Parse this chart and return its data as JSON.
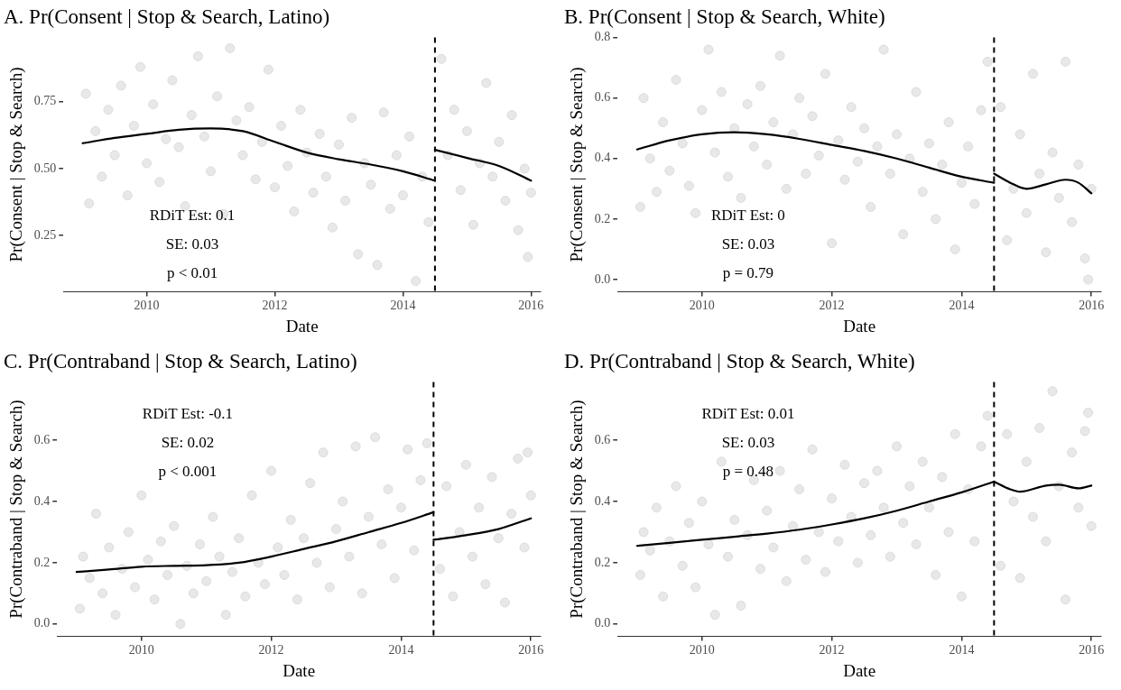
{
  "chart_data": [
    {
      "type": "scatter",
      "title": "A. Pr(Consent | Stop & Search, Latino)",
      "xlabel": "Date",
      "ylabel": "Pr(Consent | Stop & Search)",
      "xlim": [
        2008.7,
        2016.15
      ],
      "xticks": [
        2010,
        2012,
        2014,
        2016
      ],
      "ylim": [
        0.04,
        0.99
      ],
      "yticks": [
        {
          "value": 0.25,
          "label": "0.25"
        },
        {
          "value": 0.5,
          "label": "0.50"
        },
        {
          "value": 0.75,
          "label": "0.75"
        }
      ],
      "ref_lines": [
        {
          "axis": "x",
          "value": 2014.5,
          "line_style": "dashed",
          "color": "#000000"
        }
      ],
      "annotations": [
        "RDiT Est: 0.1",
        "SE: 0.03",
        "p < 0.01"
      ],
      "series": [
        {
          "type": "scatter",
          "marker": "circle",
          "color": "#d9d9d9",
          "x": [
            2009.05,
            2009.1,
            2009.2,
            2009.3,
            2009.4,
            2009.5,
            2009.6,
            2009.7,
            2009.8,
            2009.9,
            2010.0,
            2010.1,
            2010.2,
            2010.3,
            2010.4,
            2010.5,
            2010.6,
            2010.7,
            2010.8,
            2010.9,
            2011.0,
            2011.1,
            2011.2,
            2011.3,
            2011.4,
            2011.5,
            2011.6,
            2011.7,
            2011.8,
            2011.9,
            2012.0,
            2012.1,
            2012.2,
            2012.3,
            2012.4,
            2012.5,
            2012.6,
            2012.7,
            2012.8,
            2012.9,
            2013.0,
            2013.1,
            2013.2,
            2013.3,
            2013.4,
            2013.5,
            2013.6,
            2013.7,
            2013.8,
            2013.9,
            2014.0,
            2014.1,
            2014.2,
            2014.3,
            2014.4,
            2014.6,
            2014.7,
            2014.8,
            2014.9,
            2015.0,
            2015.1,
            2015.2,
            2015.3,
            2015.4,
            2015.5,
            2015.6,
            2015.7,
            2015.8,
            2015.9,
            2016.0,
            2015.95
          ],
          "values": [
            0.78,
            0.37,
            0.64,
            0.47,
            0.72,
            0.55,
            0.81,
            0.4,
            0.66,
            0.88,
            0.52,
            0.74,
            0.45,
            0.61,
            0.83,
            0.58,
            0.36,
            0.7,
            0.92,
            0.62,
            0.49,
            0.77,
            0.33,
            0.95,
            0.68,
            0.55,
            0.73,
            0.46,
            0.6,
            0.87,
            0.43,
            0.66,
            0.51,
            0.34,
            0.72,
            0.56,
            0.41,
            0.63,
            0.47,
            0.28,
            0.59,
            0.38,
            0.69,
            0.18,
            0.52,
            0.44,
            0.14,
            0.71,
            0.35,
            0.55,
            0.4,
            0.62,
            0.08,
            0.47,
            0.3,
            0.91,
            0.55,
            0.72,
            0.42,
            0.64,
            0.29,
            0.52,
            0.82,
            0.47,
            0.6,
            0.38,
            0.7,
            0.27,
            0.5,
            0.41,
            0.17
          ]
        },
        {
          "type": "line",
          "color": "#000000",
          "x": [
            2009.0,
            2009.5,
            2010.0,
            2010.5,
            2011.0,
            2011.5,
            2012.0,
            2012.5,
            2013.0,
            2013.5,
            2014.0,
            2014.5
          ],
          "values": [
            0.595,
            0.615,
            0.63,
            0.645,
            0.65,
            0.64,
            0.6,
            0.56,
            0.535,
            0.515,
            0.49,
            0.455
          ]
        },
        {
          "type": "line",
          "color": "#000000",
          "x": [
            2014.5,
            2015.0,
            2015.5,
            2016.0
          ],
          "values": [
            0.57,
            0.54,
            0.51,
            0.455
          ]
        }
      ]
    },
    {
      "type": "scatter",
      "title": "B. Pr(Consent | Stop & Search, White)",
      "xlabel": "Date",
      "ylabel": "Pr(Consent | Stop & Search)",
      "xlim": [
        2008.7,
        2016.15
      ],
      "xticks": [
        2010,
        2012,
        2014,
        2016
      ],
      "ylim": [
        -0.04,
        0.8
      ],
      "yticks": [
        {
          "value": 0,
          "label": "0.0"
        },
        {
          "value": 0.2,
          "label": "0.2"
        },
        {
          "value": 0.4,
          "label": "0.4"
        },
        {
          "value": 0.6,
          "label": "0.6"
        },
        {
          "value": 0.8,
          "label": "0.8"
        }
      ],
      "ref_lines": [
        {
          "axis": "x",
          "value": 2014.5,
          "line_style": "dashed",
          "color": "#000000"
        }
      ],
      "annotations": [
        "RDiT Est: 0",
        "SE: 0.03",
        "p = 0.79"
      ],
      "series": [
        {
          "type": "scatter",
          "marker": "circle",
          "color": "#d9d9d9",
          "x": [
            2009.05,
            2009.1,
            2009.2,
            2009.3,
            2009.4,
            2009.5,
            2009.6,
            2009.7,
            2009.8,
            2009.9,
            2010.0,
            2010.1,
            2010.2,
            2010.3,
            2010.4,
            2010.5,
            2010.6,
            2010.7,
            2010.8,
            2010.9,
            2011.0,
            2011.1,
            2011.2,
            2011.3,
            2011.4,
            2011.5,
            2011.6,
            2011.7,
            2011.8,
            2011.9,
            2012.0,
            2012.1,
            2012.2,
            2012.3,
            2012.4,
            2012.5,
            2012.6,
            2012.7,
            2012.8,
            2012.9,
            2013.0,
            2013.1,
            2013.2,
            2013.3,
            2013.4,
            2013.5,
            2013.6,
            2013.7,
            2013.8,
            2013.9,
            2014.0,
            2014.1,
            2014.2,
            2014.3,
            2014.4,
            2014.6,
            2014.7,
            2014.8,
            2014.9,
            2015.0,
            2015.1,
            2015.2,
            2015.3,
            2015.4,
            2015.5,
            2015.6,
            2015.7,
            2015.8,
            2015.9,
            2016.0,
            2015.95
          ],
          "values": [
            0.24,
            0.6,
            0.4,
            0.29,
            0.52,
            0.36,
            0.66,
            0.45,
            0.31,
            0.22,
            0.56,
            0.76,
            0.42,
            0.62,
            0.34,
            0.5,
            0.27,
            0.58,
            0.44,
            0.64,
            0.38,
            0.52,
            0.74,
            0.3,
            0.48,
            0.6,
            0.35,
            0.54,
            0.41,
            0.68,
            0.12,
            0.46,
            0.33,
            0.57,
            0.39,
            0.5,
            0.24,
            0.44,
            0.76,
            0.35,
            0.48,
            0.15,
            0.4,
            0.62,
            0.29,
            0.45,
            0.2,
            0.38,
            0.52,
            0.1,
            0.32,
            0.44,
            0.25,
            0.56,
            0.72,
            0.57,
            0.13,
            0.3,
            0.48,
            0.22,
            0.68,
            0.35,
            0.09,
            0.42,
            0.27,
            0.72,
            0.19,
            0.38,
            0.07,
            0.3,
            0.0
          ]
        },
        {
          "type": "line",
          "color": "#000000",
          "x": [
            2009.0,
            2009.5,
            2010.0,
            2010.5,
            2011.0,
            2011.5,
            2012.0,
            2012.5,
            2013.0,
            2013.5,
            2014.0,
            2014.5
          ],
          "values": [
            0.43,
            0.46,
            0.48,
            0.487,
            0.48,
            0.465,
            0.445,
            0.425,
            0.4,
            0.37,
            0.34,
            0.32
          ]
        },
        {
          "type": "line",
          "color": "#000000",
          "x": [
            2014.5,
            2014.75,
            2015.0,
            2015.3,
            2015.6,
            2015.8,
            2016.0
          ],
          "values": [
            0.35,
            0.32,
            0.3,
            0.315,
            0.33,
            0.32,
            0.285
          ]
        }
      ]
    },
    {
      "type": "scatter",
      "title": "C. Pr(Contraband | Stop & Search, Latino)",
      "xlabel": "Date",
      "ylabel": "Pr(Contraband | Stop & Search)",
      "xlim": [
        2008.7,
        2016.15
      ],
      "xticks": [
        2010,
        2012,
        2014,
        2016
      ],
      "ylim": [
        -0.04,
        0.79
      ],
      "yticks": [
        {
          "value": 0,
          "label": "0.0"
        },
        {
          "value": 0.2,
          "label": "0.2"
        },
        {
          "value": 0.4,
          "label": "0.4"
        },
        {
          "value": 0.6,
          "label": "0.6"
        }
      ],
      "ref_lines": [
        {
          "axis": "x",
          "value": 2014.5,
          "line_style": "dashed",
          "color": "#000000"
        }
      ],
      "annotations": [
        "RDiT Est: -0.1",
        "SE: 0.02",
        "p < 0.001"
      ],
      "series": [
        {
          "type": "scatter",
          "marker": "circle",
          "color": "#d9d9d9",
          "x": [
            2009.05,
            2009.1,
            2009.2,
            2009.3,
            2009.4,
            2009.5,
            2009.6,
            2009.7,
            2009.8,
            2009.9,
            2010.0,
            2010.1,
            2010.2,
            2010.3,
            2010.4,
            2010.5,
            2010.6,
            2010.7,
            2010.8,
            2010.9,
            2011.0,
            2011.1,
            2011.2,
            2011.3,
            2011.4,
            2011.5,
            2011.6,
            2011.7,
            2011.8,
            2011.9,
            2012.0,
            2012.1,
            2012.2,
            2012.3,
            2012.4,
            2012.5,
            2012.6,
            2012.7,
            2012.8,
            2012.9,
            2013.0,
            2013.1,
            2013.2,
            2013.3,
            2013.4,
            2013.5,
            2013.6,
            2013.7,
            2013.8,
            2013.9,
            2014.0,
            2014.1,
            2014.2,
            2014.3,
            2014.4,
            2014.6,
            2014.7,
            2014.8,
            2014.9,
            2015.0,
            2015.1,
            2015.2,
            2015.3,
            2015.4,
            2015.5,
            2015.6,
            2015.7,
            2015.8,
            2015.9,
            2016.0,
            2015.95
          ],
          "values": [
            0.05,
            0.22,
            0.15,
            0.36,
            0.1,
            0.25,
            0.03,
            0.18,
            0.3,
            0.12,
            0.42,
            0.21,
            0.08,
            0.27,
            0.16,
            0.32,
            0.0,
            0.19,
            0.1,
            0.26,
            0.14,
            0.35,
            0.22,
            0.03,
            0.17,
            0.28,
            0.09,
            0.42,
            0.2,
            0.13,
            0.5,
            0.25,
            0.16,
            0.34,
            0.08,
            0.28,
            0.46,
            0.2,
            0.56,
            0.12,
            0.31,
            0.4,
            0.22,
            0.58,
            0.1,
            0.35,
            0.61,
            0.26,
            0.44,
            0.15,
            0.38,
            0.57,
            0.24,
            0.47,
            0.59,
            0.18,
            0.45,
            0.09,
            0.3,
            0.52,
            0.22,
            0.38,
            0.13,
            0.48,
            0.28,
            0.07,
            0.36,
            0.54,
            0.25,
            0.42,
            0.56
          ]
        },
        {
          "type": "line",
          "color": "#000000",
          "x": [
            2009.0,
            2009.5,
            2010.0,
            2010.5,
            2011.0,
            2011.5,
            2012.0,
            2012.5,
            2013.0,
            2013.5,
            2014.0,
            2014.5
          ],
          "values": [
            0.17,
            0.178,
            0.187,
            0.19,
            0.192,
            0.2,
            0.22,
            0.245,
            0.27,
            0.3,
            0.33,
            0.365
          ]
        },
        {
          "type": "line",
          "color": "#000000",
          "x": [
            2014.5,
            2015.0,
            2015.5,
            2016.0
          ],
          "values": [
            0.275,
            0.29,
            0.31,
            0.345
          ]
        }
      ]
    },
    {
      "type": "scatter",
      "title": "D. Pr(Contraband | Stop & Search, White)",
      "xlabel": "Date",
      "ylabel": "Pr(Contraband | Stop & Search)",
      "xlim": [
        2008.7,
        2016.15
      ],
      "xticks": [
        2010,
        2012,
        2014,
        2016
      ],
      "ylim": [
        -0.04,
        0.79
      ],
      "yticks": [
        {
          "value": 0,
          "label": "0.0"
        },
        {
          "value": 0.2,
          "label": "0.2"
        },
        {
          "value": 0.4,
          "label": "0.4"
        },
        {
          "value": 0.6,
          "label": "0.6"
        }
      ],
      "ref_lines": [
        {
          "axis": "x",
          "value": 2014.5,
          "line_style": "dashed",
          "color": "#000000"
        }
      ],
      "annotations": [
        "RDiT Est: 0.01",
        "SE: 0.03",
        "p = 0.48"
      ],
      "series": [
        {
          "type": "scatter",
          "marker": "circle",
          "color": "#d9d9d9",
          "x": [
            2009.05,
            2009.1,
            2009.2,
            2009.3,
            2009.4,
            2009.5,
            2009.6,
            2009.7,
            2009.8,
            2009.9,
            2010.0,
            2010.1,
            2010.2,
            2010.3,
            2010.4,
            2010.5,
            2010.6,
            2010.7,
            2010.8,
            2010.9,
            2011.0,
            2011.1,
            2011.2,
            2011.3,
            2011.4,
            2011.5,
            2011.6,
            2011.7,
            2011.8,
            2011.9,
            2012.0,
            2012.1,
            2012.2,
            2012.3,
            2012.4,
            2012.5,
            2012.6,
            2012.7,
            2012.8,
            2012.9,
            2013.0,
            2013.1,
            2013.2,
            2013.3,
            2013.4,
            2013.5,
            2013.6,
            2013.7,
            2013.8,
            2013.9,
            2014.0,
            2014.1,
            2014.2,
            2014.3,
            2014.4,
            2014.6,
            2014.7,
            2014.8,
            2014.9,
            2015.0,
            2015.1,
            2015.2,
            2015.3,
            2015.4,
            2015.5,
            2015.6,
            2015.7,
            2015.8,
            2015.9,
            2016.0,
            2015.95
          ],
          "values": [
            0.16,
            0.3,
            0.24,
            0.38,
            0.09,
            0.27,
            0.45,
            0.19,
            0.33,
            0.12,
            0.4,
            0.26,
            0.03,
            0.53,
            0.22,
            0.34,
            0.06,
            0.29,
            0.47,
            0.18,
            0.37,
            0.25,
            0.5,
            0.14,
            0.32,
            0.44,
            0.21,
            0.57,
            0.3,
            0.17,
            0.41,
            0.27,
            0.52,
            0.35,
            0.2,
            0.46,
            0.29,
            0.5,
            0.38,
            0.22,
            0.58,
            0.33,
            0.45,
            0.26,
            0.53,
            0.38,
            0.16,
            0.48,
            0.3,
            0.62,
            0.09,
            0.44,
            0.27,
            0.58,
            0.68,
            0.19,
            0.62,
            0.4,
            0.15,
            0.53,
            0.35,
            0.64,
            0.27,
            0.76,
            0.45,
            0.08,
            0.56,
            0.38,
            0.63,
            0.32,
            0.69
          ]
        },
        {
          "type": "line",
          "color": "#000000",
          "x": [
            2009.0,
            2009.5,
            2010.0,
            2010.5,
            2011.0,
            2011.5,
            2012.0,
            2012.5,
            2013.0,
            2013.5,
            2014.0,
            2014.5
          ],
          "values": [
            0.255,
            0.265,
            0.275,
            0.285,
            0.295,
            0.308,
            0.325,
            0.345,
            0.37,
            0.4,
            0.43,
            0.465
          ]
        },
        {
          "type": "line",
          "color": "#000000",
          "x": [
            2014.5,
            2014.75,
            2014.9,
            2015.3,
            2015.5,
            2015.8,
            2016.0
          ],
          "values": [
            0.465,
            0.44,
            0.432,
            0.452,
            0.455,
            0.443,
            0.452
          ]
        }
      ]
    }
  ]
}
